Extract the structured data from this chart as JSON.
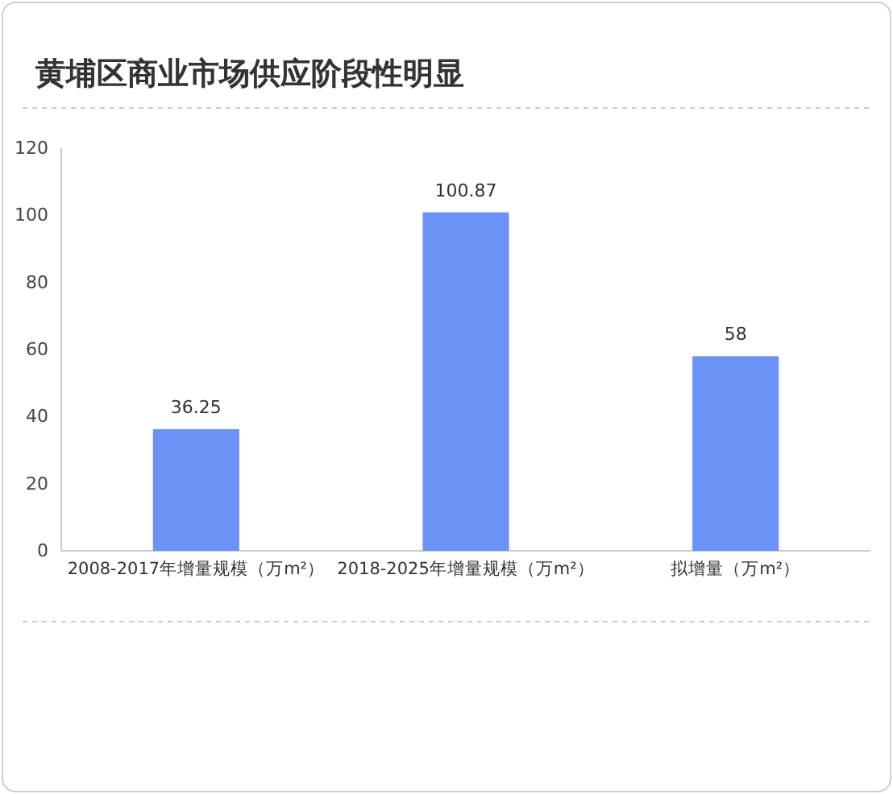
{
  "chart_data": {
    "type": "bar",
    "title": "黄埔区商业市场供应阶段性明显",
    "categories": [
      "2008-2017年增量规模（万m²）",
      "2018-2025年增量规模（万m²）",
      "拟增量（万m²）"
    ],
    "values": [
      36.25,
      100.87,
      58
    ],
    "color": "#6b93f7",
    "ylim": [
      0,
      120
    ],
    "yticks": [
      0,
      20,
      40,
      60,
      80,
      100,
      120
    ],
    "grid": false,
    "data_labels": true
  }
}
